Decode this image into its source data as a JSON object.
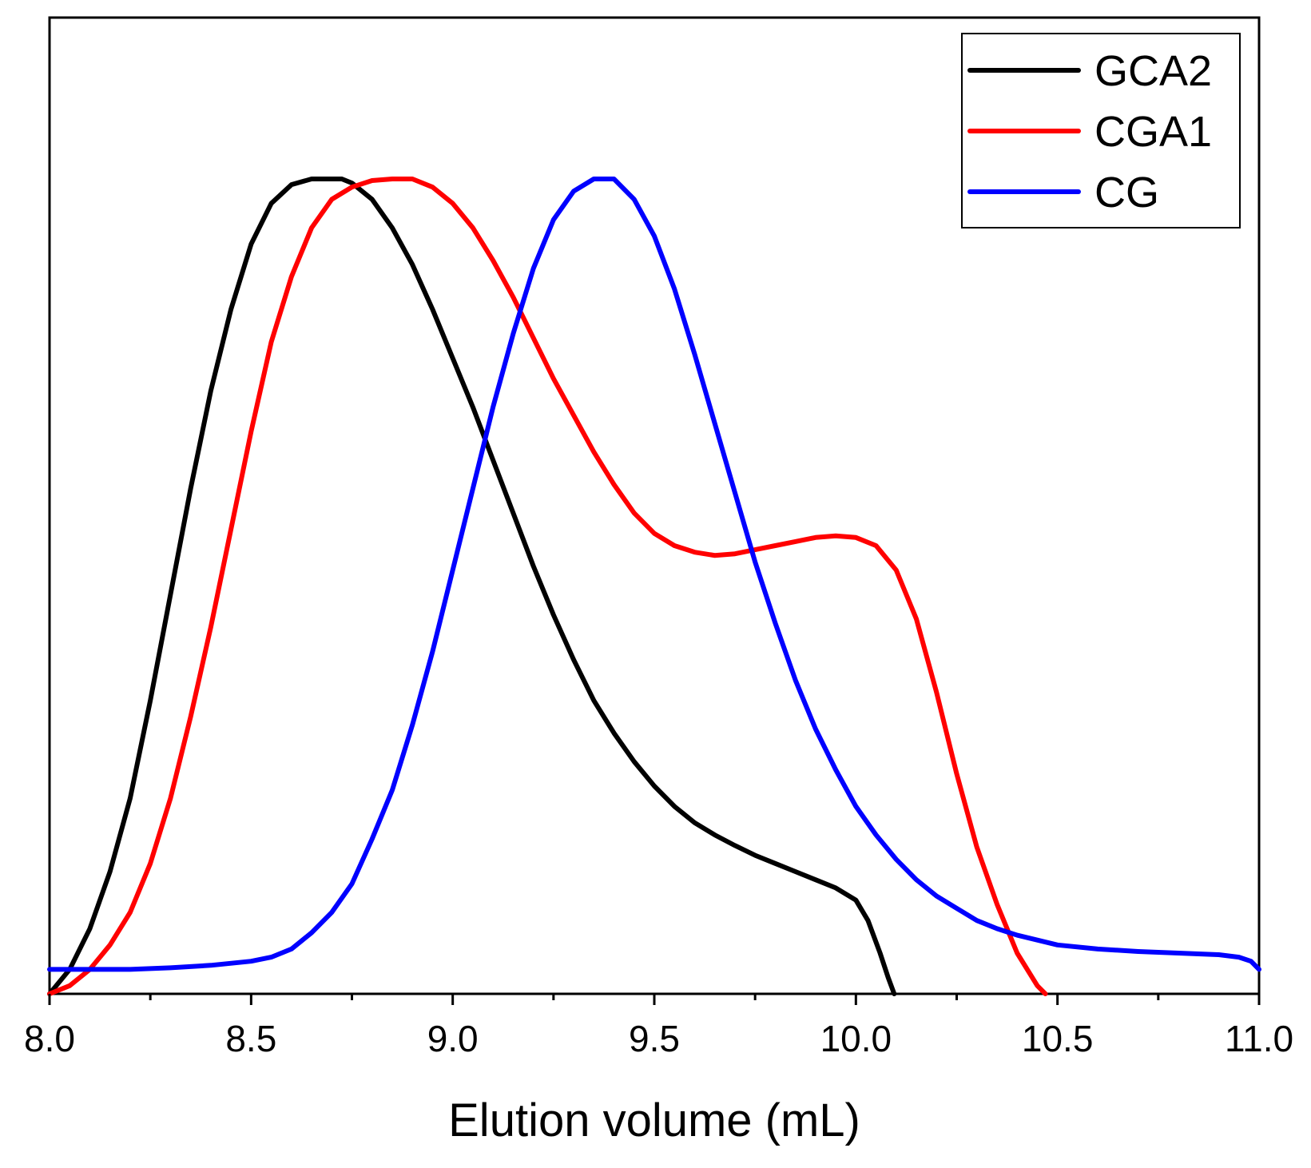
{
  "chart_data": {
    "type": "line",
    "title": "",
    "xlabel": "Elution volume (mL)",
    "ylabel": "",
    "xlim": [
      8.0,
      11.0
    ],
    "ylim": [
      0,
      1.0
    ],
    "x_ticks": [
      "8.0",
      "8.5",
      "9.0",
      "9.5",
      "10.0",
      "10.5",
      "11.0"
    ],
    "x_tick_values": [
      8.0,
      8.5,
      9.0,
      9.5,
      10.0,
      10.5,
      11.0
    ],
    "x_minor_tick_values": [
      8.25,
      8.75,
      9.25,
      9.75,
      10.25,
      10.75
    ],
    "legend_position": "top-right",
    "series": [
      {
        "name": "GCA2",
        "color": "#000000",
        "x": [
          8.0,
          8.05,
          8.1,
          8.15,
          8.2,
          8.25,
          8.3,
          8.35,
          8.4,
          8.45,
          8.5,
          8.55,
          8.6,
          8.65,
          8.7,
          8.725,
          8.75,
          8.8,
          8.85,
          8.9,
          8.95,
          9.0,
          9.05,
          9.1,
          9.15,
          9.2,
          9.25,
          9.3,
          9.35,
          9.4,
          9.45,
          9.5,
          9.55,
          9.6,
          9.65,
          9.7,
          9.75,
          9.8,
          9.85,
          9.9,
          9.95,
          10.0,
          10.03,
          10.06,
          10.08,
          10.095
        ],
        "y": [
          0.0,
          0.03,
          0.08,
          0.15,
          0.24,
          0.36,
          0.49,
          0.62,
          0.74,
          0.84,
          0.92,
          0.97,
          0.993,
          1.0,
          1.0,
          1.0,
          0.995,
          0.975,
          0.94,
          0.895,
          0.84,
          0.78,
          0.72,
          0.655,
          0.59,
          0.525,
          0.465,
          0.41,
          0.36,
          0.32,
          0.285,
          0.255,
          0.23,
          0.21,
          0.195,
          0.182,
          0.17,
          0.16,
          0.15,
          0.14,
          0.13,
          0.115,
          0.09,
          0.05,
          0.02,
          0.0
        ]
      },
      {
        "name": "CGA1",
        "color": "#ff0000",
        "x": [
          8.0,
          8.05,
          8.1,
          8.15,
          8.2,
          8.25,
          8.3,
          8.35,
          8.4,
          8.45,
          8.5,
          8.55,
          8.6,
          8.65,
          8.7,
          8.75,
          8.8,
          8.85,
          8.9,
          8.95,
          9.0,
          9.05,
          9.1,
          9.15,
          9.2,
          9.25,
          9.3,
          9.35,
          9.4,
          9.45,
          9.5,
          9.55,
          9.6,
          9.65,
          9.7,
          9.75,
          9.8,
          9.85,
          9.9,
          9.95,
          10.0,
          10.05,
          10.1,
          10.15,
          10.2,
          10.25,
          10.3,
          10.35,
          10.4,
          10.45,
          10.47
        ],
        "y": [
          0.0,
          0.01,
          0.03,
          0.06,
          0.1,
          0.16,
          0.24,
          0.34,
          0.45,
          0.57,
          0.69,
          0.8,
          0.88,
          0.94,
          0.975,
          0.99,
          0.998,
          1.0,
          1.0,
          0.99,
          0.97,
          0.94,
          0.9,
          0.855,
          0.805,
          0.755,
          0.71,
          0.665,
          0.625,
          0.59,
          0.565,
          0.55,
          0.542,
          0.538,
          0.54,
          0.545,
          0.55,
          0.555,
          0.56,
          0.562,
          0.56,
          0.55,
          0.52,
          0.46,
          0.37,
          0.27,
          0.18,
          0.11,
          0.05,
          0.01,
          0.0
        ]
      },
      {
        "name": "CG",
        "color": "#0000ff",
        "x": [
          8.0,
          8.1,
          8.2,
          8.3,
          8.4,
          8.5,
          8.55,
          8.6,
          8.65,
          8.7,
          8.75,
          8.8,
          8.85,
          8.9,
          8.95,
          9.0,
          9.05,
          9.1,
          9.15,
          9.2,
          9.25,
          9.3,
          9.35,
          9.4,
          9.45,
          9.5,
          9.55,
          9.6,
          9.65,
          9.7,
          9.75,
          9.8,
          9.85,
          9.9,
          9.95,
          10.0,
          10.05,
          10.1,
          10.15,
          10.2,
          10.25,
          10.3,
          10.35,
          10.4,
          10.5,
          10.6,
          10.7,
          10.8,
          10.9,
          10.95,
          10.98,
          11.0
        ],
        "y": [
          0.03,
          0.03,
          0.03,
          0.032,
          0.035,
          0.04,
          0.045,
          0.055,
          0.075,
          0.1,
          0.135,
          0.19,
          0.25,
          0.33,
          0.42,
          0.52,
          0.62,
          0.72,
          0.81,
          0.89,
          0.95,
          0.985,
          1.0,
          1.0,
          0.975,
          0.93,
          0.865,
          0.785,
          0.7,
          0.615,
          0.53,
          0.455,
          0.385,
          0.325,
          0.275,
          0.23,
          0.195,
          0.165,
          0.14,
          0.12,
          0.105,
          0.09,
          0.08,
          0.072,
          0.06,
          0.055,
          0.052,
          0.05,
          0.048,
          0.045,
          0.04,
          0.03
        ]
      }
    ]
  }
}
